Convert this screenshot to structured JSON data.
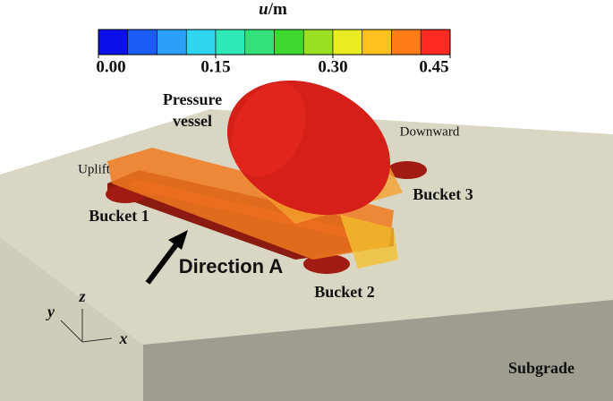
{
  "colorbar": {
    "variable": "u",
    "unit": "/m",
    "range": [
      0,
      0.45
    ],
    "colors": [
      "#0a10e8",
      "#1a5cf5",
      "#2aa0f8",
      "#30d6f0",
      "#2ee8b8",
      "#34e07a",
      "#40d830",
      "#98e020",
      "#e8ec20",
      "#ffc020",
      "#ff7c18",
      "#ff2a22"
    ],
    "ticks": [
      {
        "value": 0,
        "label": "0.00"
      },
      {
        "value": 0.15,
        "label": "0.15"
      },
      {
        "value": 0.3,
        "label": "0.30"
      },
      {
        "value": 0.45,
        "label": "0.45"
      }
    ]
  },
  "labels": {
    "vessel_line1": "Pressure",
    "vessel_line2": "vessel",
    "downward": "Downward",
    "uplift": "Uplift",
    "bucket1": "Bucket 1",
    "bucket2": "Bucket 2",
    "bucket3": "Bucket 3",
    "direction": "Direction A",
    "subgrade": "Subgrade"
  },
  "axes": {
    "y": "y",
    "z": "z",
    "x": "x"
  }
}
